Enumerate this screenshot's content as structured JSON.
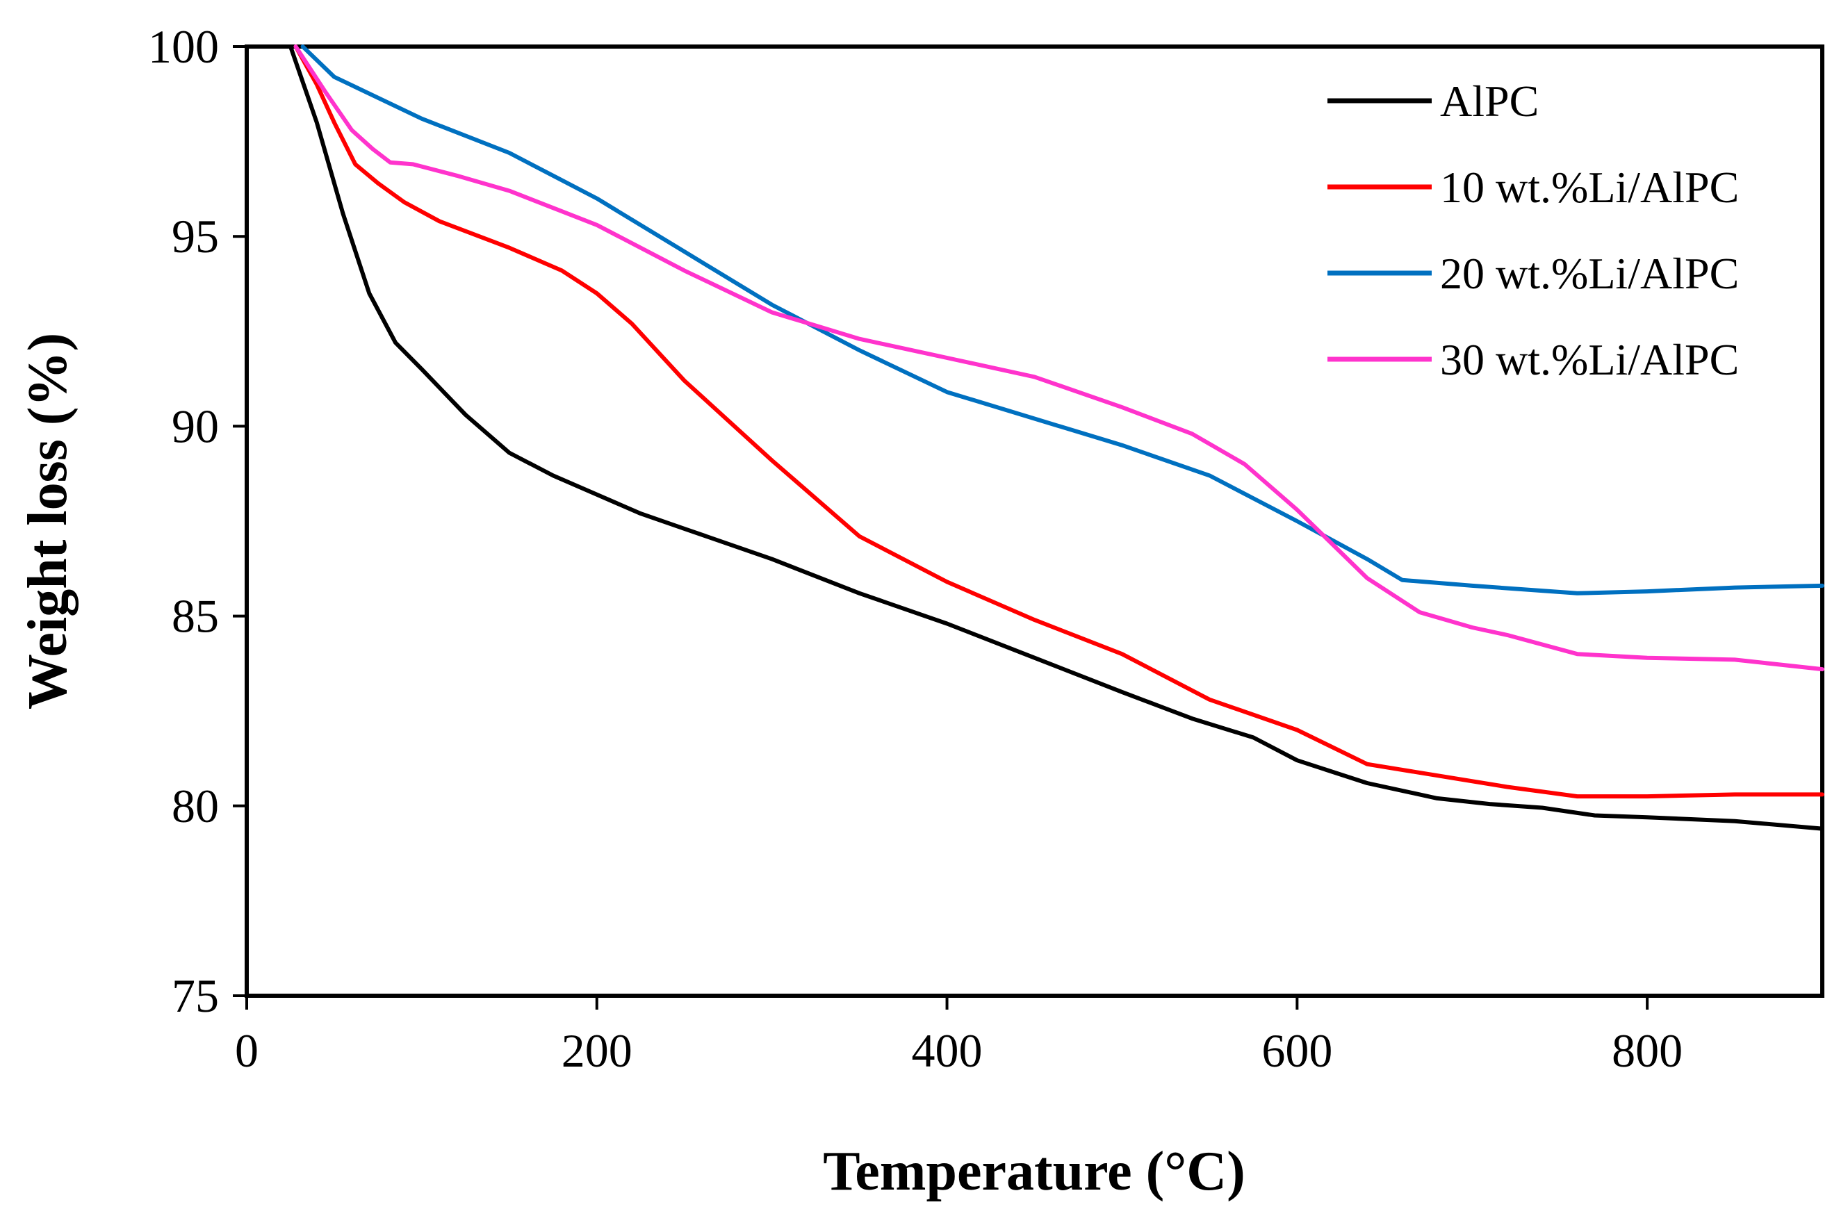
{
  "chart_data": {
    "type": "line",
    "title": "",
    "xlabel": "Temperature (°C)",
    "ylabel": "Weight loss (%)",
    "xlim": [
      0,
      900
    ],
    "ylim": [
      75,
      100
    ],
    "xticks": [
      0,
      200,
      400,
      600,
      800
    ],
    "yticks": [
      75,
      80,
      85,
      90,
      95,
      100
    ],
    "grid": false,
    "legend_position": "top-right",
    "series": [
      {
        "name": "AlPC",
        "color": "#000000",
        "points": [
          [
            25,
            100
          ],
          [
            40,
            98
          ],
          [
            55,
            95.6
          ],
          [
            70,
            93.5
          ],
          [
            85,
            92.2
          ],
          [
            100,
            91.5
          ],
          [
            125,
            90.3
          ],
          [
            150,
            89.3
          ],
          [
            175,
            88.7
          ],
          [
            200,
            88.2
          ],
          [
            225,
            87.7
          ],
          [
            250,
            87.3
          ],
          [
            300,
            86.5
          ],
          [
            350,
            85.6
          ],
          [
            400,
            84.8
          ],
          [
            450,
            83.9
          ],
          [
            500,
            83.0
          ],
          [
            540,
            82.3
          ],
          [
            575,
            81.8
          ],
          [
            600,
            81.2
          ],
          [
            640,
            80.6
          ],
          [
            680,
            80.2
          ],
          [
            710,
            80.05
          ],
          [
            740,
            79.95
          ],
          [
            770,
            79.75
          ],
          [
            800,
            79.7
          ],
          [
            850,
            79.6
          ],
          [
            900,
            79.4
          ]
        ]
      },
      {
        "name": "10 wt.%Li/AlPC",
        "color": "#ff0000",
        "points": [
          [
            28,
            100
          ],
          [
            40,
            99
          ],
          [
            50,
            98
          ],
          [
            62,
            96.9
          ],
          [
            75,
            96.4
          ],
          [
            90,
            95.9
          ],
          [
            110,
            95.4
          ],
          [
            150,
            94.7
          ],
          [
            180,
            94.1
          ],
          [
            200,
            93.5
          ],
          [
            220,
            92.7
          ],
          [
            250,
            91.2
          ],
          [
            300,
            89.1
          ],
          [
            350,
            87.1
          ],
          [
            400,
            85.9
          ],
          [
            450,
            84.9
          ],
          [
            500,
            84.0
          ],
          [
            550,
            82.8
          ],
          [
            600,
            82.0
          ],
          [
            640,
            81.1
          ],
          [
            680,
            80.8
          ],
          [
            720,
            80.5
          ],
          [
            760,
            80.25
          ],
          [
            800,
            80.25
          ],
          [
            850,
            80.3
          ],
          [
            900,
            80.3
          ]
        ]
      },
      {
        "name": "20 wt.%Li/AlPC",
        "color": "#0070c0",
        "points": [
          [
            32,
            100
          ],
          [
            50,
            99.2
          ],
          [
            100,
            98.1
          ],
          [
            150,
            97.2
          ],
          [
            200,
            96.0
          ],
          [
            250,
            94.6
          ],
          [
            300,
            93.2
          ],
          [
            350,
            92.0
          ],
          [
            400,
            90.9
          ],
          [
            450,
            90.2
          ],
          [
            500,
            89.5
          ],
          [
            550,
            88.7
          ],
          [
            600,
            87.5
          ],
          [
            640,
            86.5
          ],
          [
            660,
            85.95
          ],
          [
            700,
            85.8
          ],
          [
            760,
            85.6
          ],
          [
            800,
            85.65
          ],
          [
            850,
            85.75
          ],
          [
            900,
            85.8
          ]
        ]
      },
      {
        "name": "30 wt.%Li/AlPC",
        "color": "#ff33cc",
        "points": [
          [
            28,
            100
          ],
          [
            45,
            98.8
          ],
          [
            60,
            97.8
          ],
          [
            72,
            97.3
          ],
          [
            82,
            96.95
          ],
          [
            95,
            96.9
          ],
          [
            120,
            96.6
          ],
          [
            150,
            96.2
          ],
          [
            200,
            95.3
          ],
          [
            250,
            94.1
          ],
          [
            300,
            93.0
          ],
          [
            350,
            92.3
          ],
          [
            400,
            91.8
          ],
          [
            450,
            91.3
          ],
          [
            500,
            90.5
          ],
          [
            540,
            89.8
          ],
          [
            570,
            89.0
          ],
          [
            600,
            87.8
          ],
          [
            640,
            86.0
          ],
          [
            670,
            85.1
          ],
          [
            700,
            84.7
          ],
          [
            720,
            84.5
          ],
          [
            760,
            84.0
          ],
          [
            800,
            83.9
          ],
          [
            850,
            83.85
          ],
          [
            900,
            83.6
          ]
        ]
      }
    ]
  }
}
